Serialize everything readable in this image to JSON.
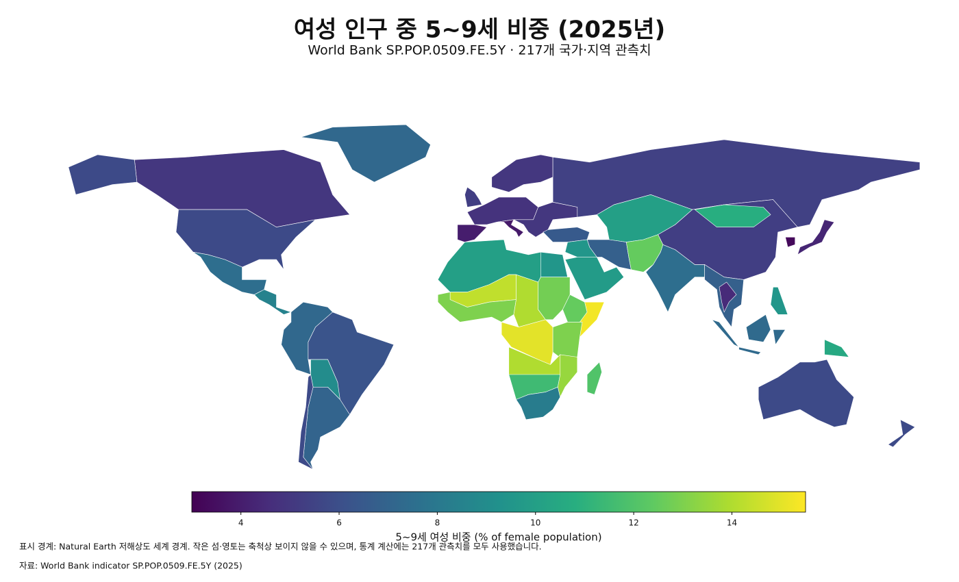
{
  "chart_data": {
    "type": "choropleth",
    "title": "여성 인구 중 5~9세 비중 (2025년)",
    "subtitle": "World Bank SP.POP.0509.FE.5Y · 217개 국가·지역 관측치",
    "colormap": "viridis",
    "values": [
      5.0,
      5.8,
      5.8,
      7.2,
      7.5,
      8.5,
      7.2,
      6.2,
      9.0,
      7.0,
      5.8,
      4.8,
      5.3,
      4.0,
      3.9,
      5.0,
      5.0,
      5.4,
      6.5,
      10.0,
      6.8,
      9.5,
      9.8,
      12.5,
      7.5,
      5.3,
      10.8,
      6.8,
      4.5,
      3.3,
      4.3,
      7.3,
      9.5,
      10.5,
      5.8,
      5.8,
      10.0,
      9.5,
      14.3,
      13.0,
      14.0,
      12.8,
      12.5,
      15.3,
      15.0,
      13.0,
      14.0,
      11.5,
      13.5,
      8.2,
      12.0
    ],
    "clim": [
      3.0,
      15.5
    ],
    "colorbar_ticks": [
      4,
      6,
      8,
      10,
      12,
      14
    ],
    "colorbar_label": "5~9세 여성 비중 (% of female population)",
    "notes": [
      "표시 경계: Natural Earth 저해상도 세계 경계. 작은 섬·영토는 축척상 보이지 않을 수 있으며, 통계 계산에는 217개 관측치를 모두 사용했습니다.",
      "자료: World Bank indicator SP.POP.0509.FE.5Y (2025)"
    ]
  }
}
